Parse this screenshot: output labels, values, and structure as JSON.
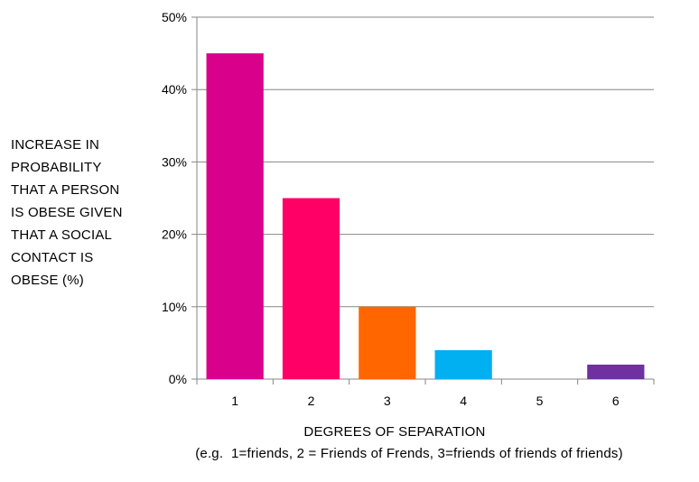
{
  "chart_data": {
    "type": "bar",
    "categories": [
      "1",
      "2",
      "3",
      "4",
      "5",
      "6"
    ],
    "values": [
      45,
      25,
      10,
      4,
      0,
      2
    ],
    "bar_colors": [
      "#d9008c",
      "#ff0066",
      "#ff6600",
      "#00b0f0",
      "#ffffff",
      "#7030a0"
    ],
    "ylabel_lines": [
      "INCREASE IN",
      "PROBABILITY",
      "THAT A PERSON",
      "IS OBESE GIVEN",
      "THAT A SOCIAL",
      "CONTACT IS",
      "OBESE (%)"
    ],
    "xlabel": "DEGREES OF SEPARATION",
    "note": "(e.g.  1=friends, 2 = Friends of Frends, 3=friends of friends of friends)",
    "ylim": [
      0,
      50
    ],
    "yticks": [
      "0%",
      "10%",
      "20%",
      "30%",
      "40%",
      "50%"
    ],
    "grid": true,
    "legend": "none"
  }
}
